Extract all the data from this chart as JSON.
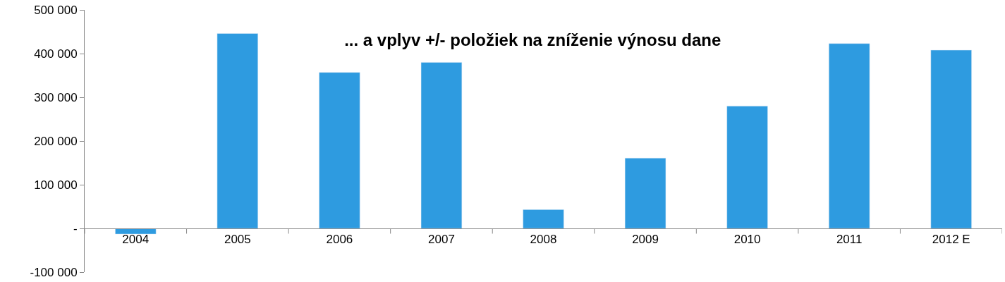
{
  "chart_data": {
    "type": "bar",
    "title": "... a vplyv +/- položiek na zníženie výnosu dane",
    "categories": [
      "2004",
      "2005",
      "2006",
      "2007",
      "2008",
      "2009",
      "2010",
      "2011",
      "2012 E"
    ],
    "values": [
      -13000,
      446000,
      357000,
      380000,
      43000,
      161000,
      280000,
      423000,
      408000
    ],
    "color": "#2e9be0",
    "ylim": [
      -100000,
      500000
    ],
    "yticks": [
      {
        "value": -100000,
        "label": "-100 000"
      },
      {
        "value": 0,
        "label": "-"
      },
      {
        "value": 100000,
        "label": "100 000"
      },
      {
        "value": 200000,
        "label": "200 000"
      },
      {
        "value": 300000,
        "label": "300 000"
      },
      {
        "value": 400000,
        "label": "400 000"
      },
      {
        "value": 500000,
        "label": "500 000"
      }
    ],
    "legend": false
  }
}
